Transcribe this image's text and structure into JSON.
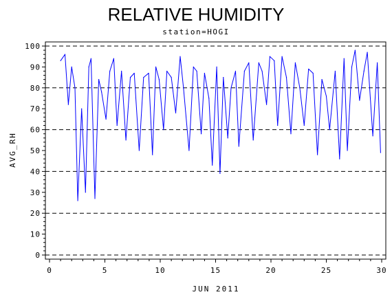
{
  "chart_data": {
    "type": "line",
    "title": "RELATIVE HUMIDITY",
    "subtitle": "station=HOGI",
    "xlabel": "JUN 2011",
    "ylabel": "AVG_RH",
    "xlim": [
      0,
      30
    ],
    "ylim": [
      0,
      100
    ],
    "x_ticks": [
      0,
      5,
      10,
      15,
      20,
      25,
      30
    ],
    "x_tick_labels": [
      "0",
      "5",
      "10",
      "15",
      "20",
      "25",
      "30"
    ],
    "y_ticks": [
      0,
      10,
      20,
      30,
      40,
      50,
      60,
      70,
      80,
      90,
      100
    ],
    "y_tick_labels": [
      "0",
      "10",
      "20",
      "30",
      "40",
      "50",
      "60",
      "70",
      "80",
      "90",
      "100"
    ],
    "reference_lines_y": [
      0,
      20,
      40,
      60,
      80,
      100
    ],
    "line_color": "#0000ff",
    "series": [
      {
        "x": [
          1.0,
          1.4,
          1.7,
          2.0,
          2.3,
          2.55,
          2.9,
          3.25,
          3.55,
          3.75,
          4.1,
          4.45,
          4.7,
          5.1,
          5.45,
          5.8,
          6.1,
          6.5,
          6.9,
          7.3,
          7.65,
          8.1,
          8.5,
          8.95,
          9.3,
          9.6,
          9.9,
          10.3,
          10.6,
          11.0,
          11.4,
          11.8,
          12.1,
          12.6,
          13.0,
          13.3,
          13.7,
          14.0,
          14.4,
          14.7,
          15.1,
          15.4,
          15.7,
          16.1,
          16.4,
          16.8,
          17.1,
          17.6,
          18.0,
          18.4,
          18.9,
          19.2,
          19.6,
          19.9,
          20.3,
          20.6,
          21.0,
          21.4,
          21.8,
          22.2,
          22.6,
          23.0,
          23.4,
          23.8,
          24.2,
          24.6,
          25.0,
          25.3,
          25.8,
          26.2,
          26.6,
          26.9,
          27.3,
          27.6,
          28.0,
          28.4,
          28.7,
          29.2,
          29.6,
          29.9
        ],
        "y": [
          93,
          96,
          72,
          90,
          80,
          26,
          70,
          30,
          90,
          94,
          27,
          84,
          78,
          65,
          88,
          94,
          62,
          88,
          55,
          85,
          87,
          50,
          85,
          87,
          48,
          90,
          84,
          60,
          88,
          85,
          68,
          95,
          80,
          50,
          90,
          88,
          58,
          87,
          75,
          43,
          90,
          39,
          85,
          56,
          80,
          88,
          52,
          88,
          92,
          55,
          92,
          88,
          72,
          95,
          93,
          62,
          95,
          85,
          58,
          92,
          80,
          62,
          89,
          87,
          48,
          84,
          76,
          60,
          88,
          46,
          94,
          50,
          90,
          98,
          74,
          88,
          97,
          57,
          92,
          49
        ]
      }
    ]
  }
}
